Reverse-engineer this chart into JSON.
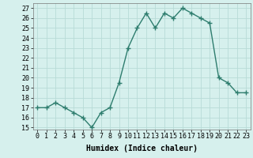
{
  "x": [
    0,
    1,
    2,
    3,
    4,
    5,
    6,
    7,
    8,
    9,
    10,
    11,
    12,
    13,
    14,
    15,
    16,
    17,
    18,
    19,
    20,
    21,
    22,
    23
  ],
  "y": [
    17,
    17,
    17.5,
    17,
    16.5,
    16,
    15,
    16.5,
    17,
    19.5,
    23,
    25,
    26.5,
    25,
    26.5,
    26,
    27,
    26.5,
    26,
    25.5,
    20,
    19.5,
    18.5,
    18.5
  ],
  "line_color": "#2e7d6e",
  "bg_color": "#d6f0ed",
  "grid_color": "#b8dbd7",
  "xlabel": "Humidex (Indice chaleur)",
  "ylim": [
    14.8,
    27.5
  ],
  "xlim": [
    -0.5,
    23.5
  ],
  "yticks": [
    15,
    16,
    17,
    18,
    19,
    20,
    21,
    22,
    23,
    24,
    25,
    26,
    27
  ],
  "xticks": [
    0,
    1,
    2,
    3,
    4,
    5,
    6,
    7,
    8,
    9,
    10,
    11,
    12,
    13,
    14,
    15,
    16,
    17,
    18,
    19,
    20,
    21,
    22,
    23
  ],
  "xtick_labels": [
    "0",
    "1",
    "2",
    "3",
    "4",
    "5",
    "6",
    "7",
    "8",
    "9",
    "10",
    "11",
    "12",
    "13",
    "14",
    "15",
    "16",
    "17",
    "18",
    "19",
    "20",
    "21",
    "22",
    "23"
  ],
  "marker": "+",
  "marker_size": 4,
  "line_width": 1.0,
  "font_size_label": 7,
  "font_size_tick": 6
}
